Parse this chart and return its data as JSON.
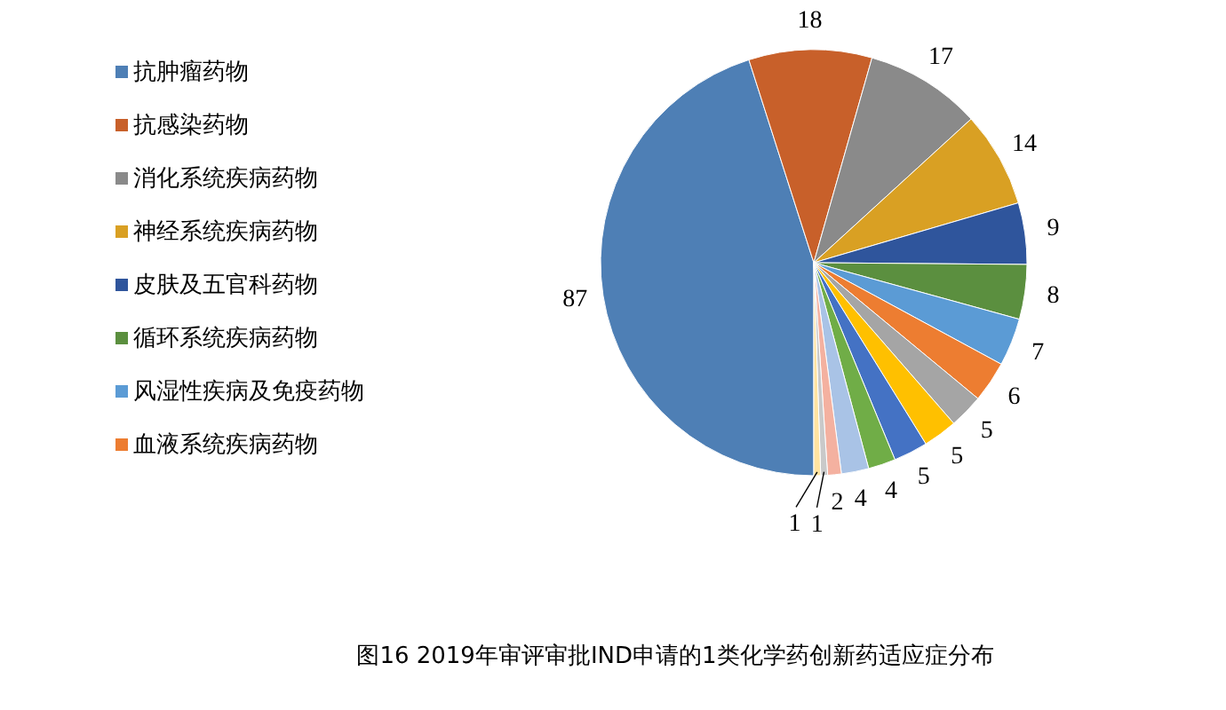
{
  "chart_data": {
    "type": "pie",
    "title": "图16 2019年审评审批IND申请的1类化学药创新药适应症分布",
    "categories": [
      "抗肿瘤药物",
      "抗感染药物",
      "消化系统疾病药物",
      "神经系统疾病药物",
      "皮肤及五官科药物",
      "循环系统疾病药物",
      "风湿性疾病及免疫药物",
      "血液系统疾病药物",
      null,
      null,
      null,
      null,
      null,
      null,
      null,
      null
    ],
    "values": [
      87,
      18,
      17,
      14,
      9,
      8,
      7,
      6,
      5,
      5,
      5,
      4,
      4,
      2,
      1,
      1
    ],
    "colors": [
      "#4e7fb5",
      "#c8602a",
      "#8a8a8a",
      "#d9a023",
      "#2f559c",
      "#5b8f3f",
      "#5b9bd5",
      "#ed7d31",
      "#a5a5a5",
      "#ffc000",
      "#4472c4",
      "#70ad47",
      "#a9c3e6",
      "#f4b1a0",
      "#c9c9c9",
      "#ffe3a0"
    ],
    "data_labels": true,
    "legend": "left"
  }
}
